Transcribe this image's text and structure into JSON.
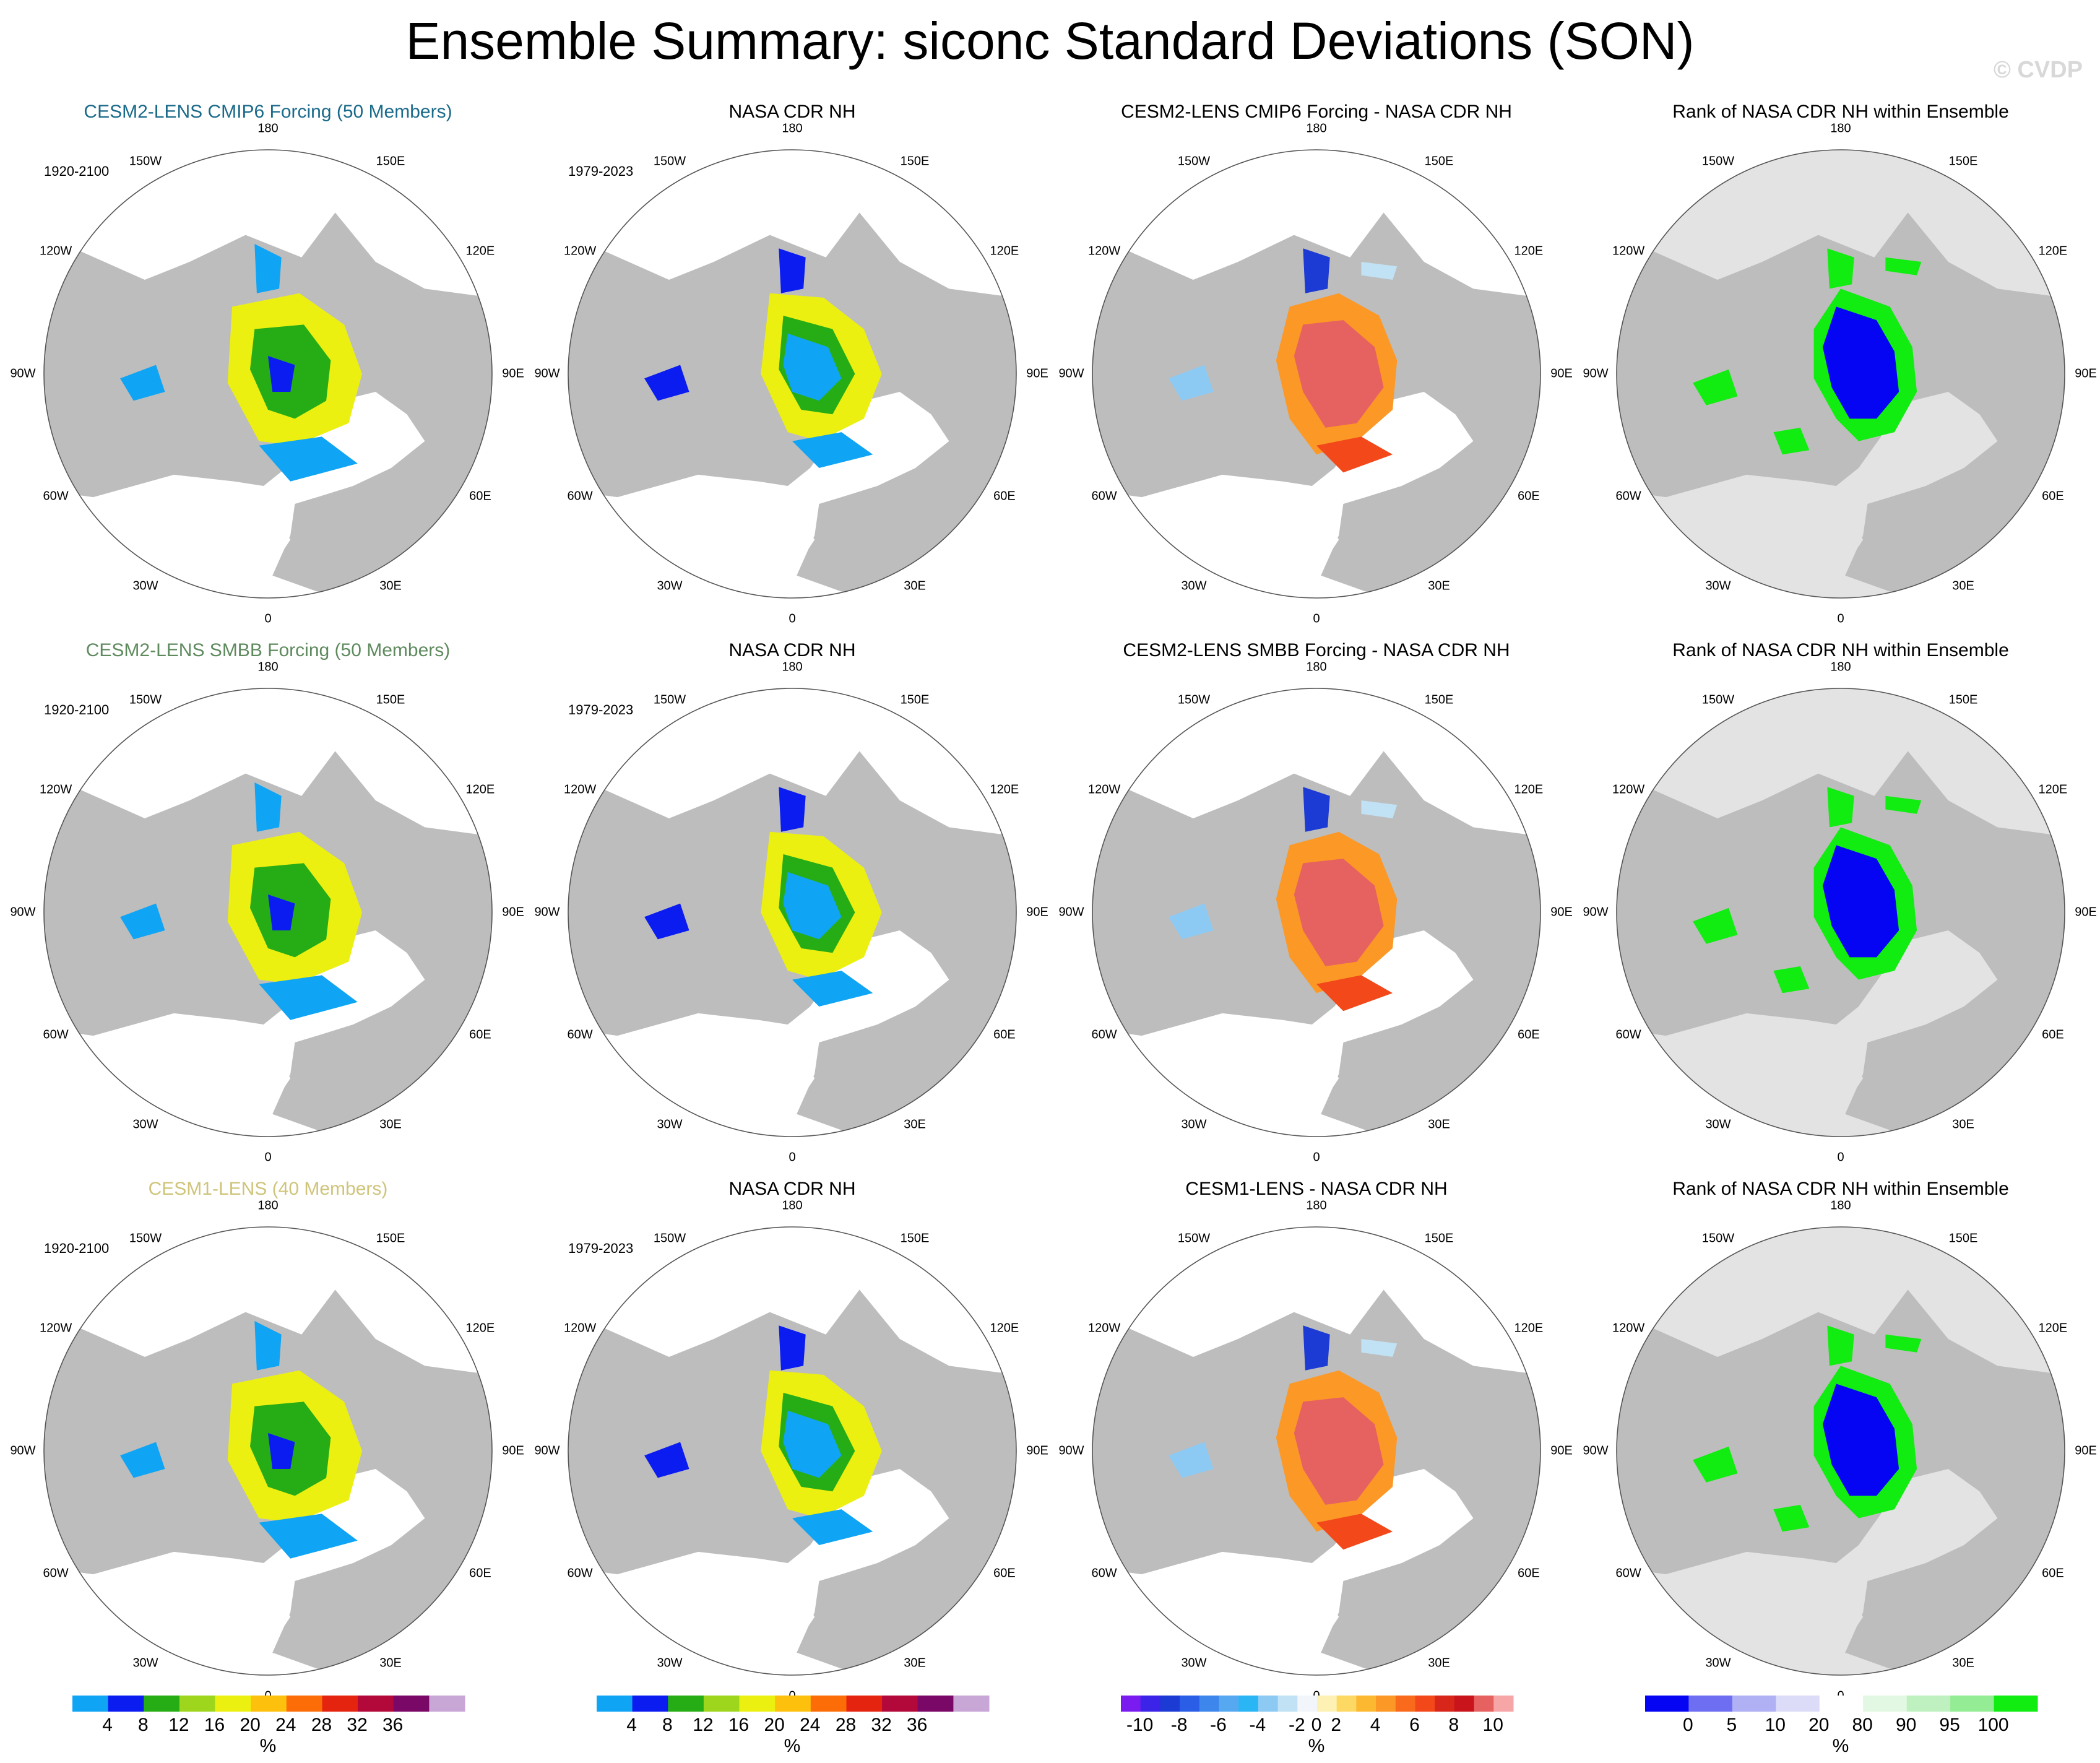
{
  "title": "Ensemble Summary: siconc Standard Deviations (SON)",
  "watermark": "© CVDP",
  "lon_labels": {
    "l180": "180",
    "l150w": "150W",
    "l150e": "150E",
    "l120w": "120W",
    "l120e": "120E",
    "l90w": "90W",
    "l90e": "90E",
    "l60w": "60W",
    "l60e": "60E",
    "l30w": "30W",
    "l30e": "30E",
    "l0": "0"
  },
  "colors": {
    "ocean_open": "#ffffff",
    "land": "#bdbdbd",
    "rank_ocean": "#e3e3e3",
    "std_palette": [
      "#10a4f4",
      "#0b1cf0",
      "#26ad16",
      "#9ed61d",
      "#ecf010",
      "#fdc00c",
      "#fc6d08",
      "#e4240e",
      "#b3083a",
      "#7a0866",
      "#c8a6d6"
    ],
    "diff_palette": [
      "#7a1cf0",
      "#3b24e8",
      "#1c3ad4",
      "#2a5ee6",
      "#3c86ec",
      "#56a8f0",
      "#2ab6f4",
      "#8ccaf4",
      "#c0e2f4",
      "#f2f6fb",
      "#fdf2b4",
      "#fdd863",
      "#fdb832",
      "#fc9826",
      "#f96a1c",
      "#f2481a",
      "#d8261a",
      "#c8141a",
      "#e66260",
      "#f6a6a6"
    ],
    "rank_palette": [
      "#0505f4",
      "#6e6ef2",
      "#b0b0f4",
      "#dcdcf8",
      "#ffffff",
      "#e2f8e2",
      "#bff0bf",
      "#94ec94",
      "#11ec11"
    ]
  },
  "rows": [
    {
      "model": {
        "title": "CESM2-LENS CMIP6 Forcing (50 Members)",
        "title_color": "#1a6a8a",
        "period": "1920-2100"
      },
      "obs": {
        "title": "NASA CDR NH",
        "period": "1979-2023"
      },
      "diff": {
        "title": "CESM2-LENS CMIP6 Forcing - NASA CDR NH"
      },
      "rank": {
        "title": "Rank of NASA CDR NH within Ensemble"
      }
    },
    {
      "model": {
        "title": "CESM2-LENS SMBB Forcing (50 Members)",
        "title_color": "#5e8a5e",
        "period": "1920-2100"
      },
      "obs": {
        "title": "NASA CDR NH",
        "period": "1979-2023"
      },
      "diff": {
        "title": "CESM2-LENS SMBB Forcing - NASA CDR NH"
      },
      "rank": {
        "title": "Rank of NASA CDR NH within Ensemble"
      }
    },
    {
      "model": {
        "title": "CESM1-LENS (40 Members)",
        "title_color": "#cfc47a",
        "period": "1920-2100"
      },
      "obs": {
        "title": "NASA CDR NH",
        "period": "1979-2023"
      },
      "diff": {
        "title": "CESM1-LENS - NASA CDR NH"
      },
      "rank": {
        "title": "Rank of NASA CDR NH within Ensemble"
      }
    }
  ],
  "colorbars": {
    "std": {
      "ticks": [
        "4",
        "8",
        "12",
        "16",
        "20",
        "24",
        "28",
        "32",
        "36"
      ],
      "unit": "%"
    },
    "diff": {
      "ticks": [
        "-10",
        "-8",
        "-6",
        "-4",
        "-2",
        "0",
        "2",
        "4",
        "6",
        "8",
        "10"
      ],
      "unit": "%"
    },
    "rank": {
      "ticks": [
        "0",
        "5",
        "10",
        "20",
        "80",
        "90",
        "95",
        "100"
      ],
      "unit": "%"
    }
  },
  "chart_data": {
    "type": "heatmap",
    "projection": "polar stereographic, North Hemisphere",
    "variable": "siconc",
    "season": "SON",
    "statistic": "standard deviation",
    "units": "%",
    "panels": [
      {
        "row": 1,
        "col": 1,
        "title": "CESM2-LENS CMIP6 Forcing (50 Members)",
        "period": "1920-2100",
        "field": "ensemble std dev",
        "levels": [
          4,
          8,
          12,
          16,
          20,
          24,
          28,
          32,
          36
        ]
      },
      {
        "row": 1,
        "col": 2,
        "title": "NASA CDR NH",
        "period": "1979-2023",
        "field": "observed std dev",
        "levels": [
          4,
          8,
          12,
          16,
          20,
          24,
          28,
          32,
          36
        ]
      },
      {
        "row": 1,
        "col": 3,
        "title": "CESM2-LENS CMIP6 Forcing - NASA CDR NH",
        "field": "difference",
        "levels": [
          -10,
          -9,
          -8,
          -7,
          -6,
          -5,
          -4,
          -3,
          -2,
          -1,
          0,
          1,
          2,
          3,
          4,
          5,
          6,
          7,
          8,
          9,
          10
        ]
      },
      {
        "row": 1,
        "col": 4,
        "title": "Rank of NASA CDR NH within Ensemble",
        "field": "rank",
        "levels": [
          0,
          5,
          10,
          20,
          80,
          90,
          95,
          100
        ]
      },
      {
        "row": 2,
        "col": 1,
        "title": "CESM2-LENS SMBB Forcing (50 Members)",
        "period": "1920-2100",
        "field": "ensemble std dev",
        "levels": [
          4,
          8,
          12,
          16,
          20,
          24,
          28,
          32,
          36
        ]
      },
      {
        "row": 2,
        "col": 2,
        "title": "NASA CDR NH",
        "period": "1979-2023",
        "field": "observed std dev",
        "levels": [
          4,
          8,
          12,
          16,
          20,
          24,
          28,
          32,
          36
        ]
      },
      {
        "row": 2,
        "col": 3,
        "title": "CESM2-LENS SMBB Forcing - NASA CDR NH",
        "field": "difference",
        "levels": [
          -10,
          -9,
          -8,
          -7,
          -6,
          -5,
          -4,
          -3,
          -2,
          -1,
          0,
          1,
          2,
          3,
          4,
          5,
          6,
          7,
          8,
          9,
          10
        ]
      },
      {
        "row": 2,
        "col": 4,
        "title": "Rank of NASA CDR NH within Ensemble",
        "field": "rank",
        "levels": [
          0,
          5,
          10,
          20,
          80,
          90,
          95,
          100
        ]
      },
      {
        "row": 3,
        "col": 1,
        "title": "CESM1-LENS (40 Members)",
        "period": "1920-2100",
        "field": "ensemble std dev",
        "levels": [
          4,
          8,
          12,
          16,
          20,
          24,
          28,
          32,
          36
        ]
      },
      {
        "row": 3,
        "col": 2,
        "title": "NASA CDR NH",
        "period": "1979-2023",
        "field": "observed std dev",
        "levels": [
          4,
          8,
          12,
          16,
          20,
          24,
          28,
          32,
          36
        ]
      },
      {
        "row": 3,
        "col": 3,
        "title": "CESM1-LENS - NASA CDR NH",
        "field": "difference",
        "levels": [
          -10,
          -9,
          -8,
          -7,
          -6,
          -5,
          -4,
          -3,
          -2,
          -1,
          0,
          1,
          2,
          3,
          4,
          5,
          6,
          7,
          8,
          9,
          10
        ]
      },
      {
        "row": 3,
        "col": 4,
        "title": "Rank of NASA CDR NH within Ensemble",
        "field": "rank",
        "levels": [
          0,
          5,
          10,
          20,
          80,
          90,
          95,
          100
        ]
      }
    ]
  }
}
